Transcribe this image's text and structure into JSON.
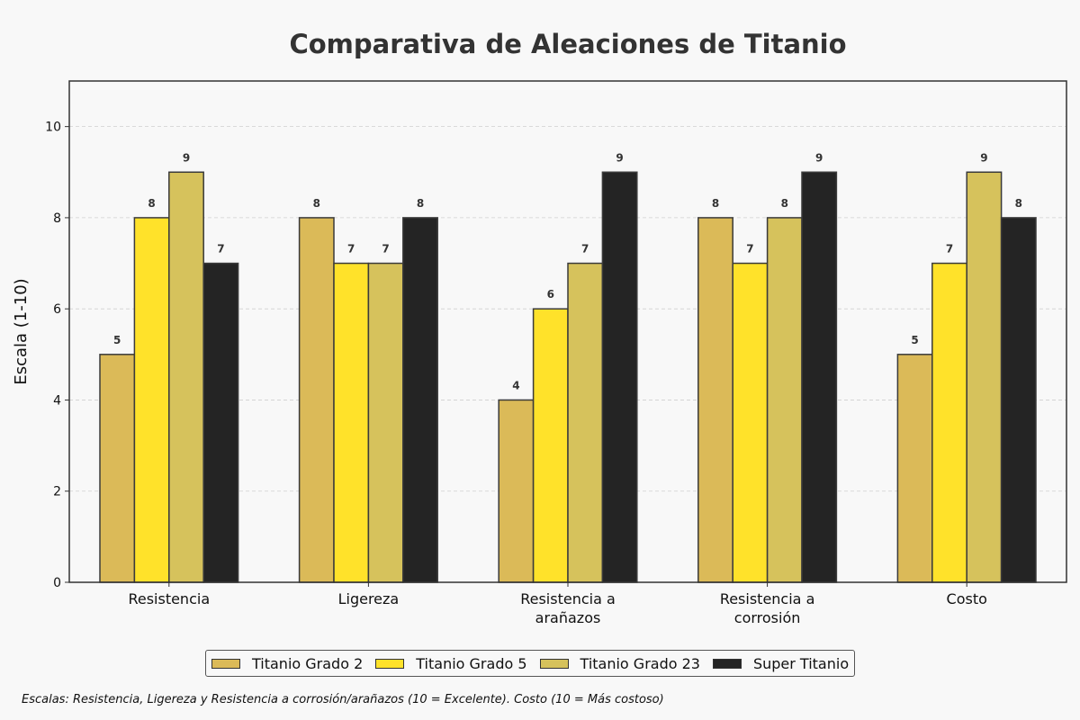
{
  "chart_data": {
    "type": "bar",
    "title": "Comparativa de Aleaciones de Titanio",
    "xlabel": "",
    "ylabel": "Escala (1-10)",
    "ylim": [
      0,
      11
    ],
    "yticks": [
      0,
      2,
      4,
      6,
      8,
      10
    ],
    "grid": true,
    "legend_position": "bottom-center",
    "categories": [
      [
        "Resistencia"
      ],
      [
        "Ligereza"
      ],
      [
        "Resistencia a",
        "arañazos"
      ],
      [
        "Resistencia a",
        "corrosión"
      ],
      [
        "Costo"
      ]
    ],
    "series": [
      {
        "name": "Titanio Grado 2",
        "color": "#dbba58",
        "values": [
          5,
          8,
          4,
          8,
          5
        ]
      },
      {
        "name": "Titanio Grado 5",
        "color": "#ffe22a",
        "values": [
          8,
          7,
          6,
          7,
          7
        ]
      },
      {
        "name": "Titanio Grado 23",
        "color": "#d6c25c",
        "values": [
          9,
          7,
          7,
          8,
          9
        ]
      },
      {
        "name": "Super Titanio",
        "color": "#242424",
        "values": [
          7,
          8,
          9,
          9,
          8
        ]
      }
    ]
  },
  "footnote": "Escalas: Resistencia, Ligereza y Resistencia a corrosión/arañazos (10 = Excelente). Costo (10 = Más costoso)"
}
